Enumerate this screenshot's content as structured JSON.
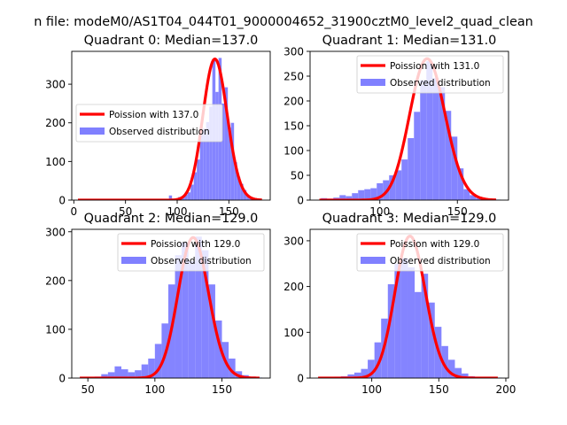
{
  "figure": {
    "suptitle": "n file: modeM0/AS1T04_044T01_9000004652_31900cztM0_level2_quad_clean"
  },
  "colors": {
    "hist": "#8080ff",
    "poisson": "#ff0000",
    "axis": "#000000",
    "background": "#ffffff"
  },
  "chart_data": [
    {
      "type": "bar",
      "title": "Quadrant 0: Median=137.0",
      "xlim": [
        -2,
        190
      ],
      "ylim": [
        0,
        385
      ],
      "xticks": [
        0,
        50,
        100,
        150
      ],
      "yticks": [
        0,
        100,
        200,
        300
      ],
      "legend": {
        "placement": "center-left",
        "labels": [
          "Poission with 137.0",
          "Observed distribution"
        ]
      },
      "poisson_mean": 137,
      "poisson_peak": 365,
      "hist": {
        "name": "Observed distribution",
        "bin_edges": [
          77,
          80,
          83,
          86,
          89,
          92,
          95,
          98,
          101,
          104,
          107,
          110,
          113,
          116,
          119,
          122,
          125,
          128,
          131,
          134,
          137,
          140,
          143,
          146,
          149,
          152,
          155,
          158,
          161,
          164,
          167,
          170,
          173,
          176,
          179,
          182
        ],
        "counts": [
          2,
          2,
          2,
          2,
          3,
          12,
          4,
          4,
          8,
          6,
          14,
          20,
          40,
          72,
          105,
          180,
          185,
          202,
          242,
          365,
          280,
          368,
          250,
          292,
          188,
          200,
          98,
          60,
          42,
          26,
          12,
          8,
          4,
          2,
          1
        ]
      }
    },
    {
      "type": "bar",
      "title": "Quadrant 1: Median=131.0",
      "xlim": [
        55,
        183
      ],
      "ylim": [
        0,
        300
      ],
      "xticks": [
        50,
        100,
        150
      ],
      "yticks": [
        0,
        50,
        100,
        150,
        200,
        250,
        300
      ],
      "legend": {
        "placement": "top-right",
        "labels": [
          "Poission with 131.0",
          "Observed distribution"
        ]
      },
      "poisson_mean": 131,
      "poisson_peak": 285,
      "hist": {
        "name": "Observed distribution",
        "bin_edges": [
          62,
          66,
          70,
          74,
          78,
          82,
          86,
          90,
          94,
          98,
          102,
          106,
          110,
          114,
          118,
          122,
          126,
          130,
          134,
          138,
          142,
          146,
          150,
          154,
          158,
          162,
          166,
          170,
          174,
          178
        ],
        "counts": [
          4,
          3,
          5,
          10,
          8,
          14,
          20,
          22,
          24,
          34,
          40,
          50,
          60,
          82,
          125,
          178,
          242,
          280,
          246,
          228,
          180,
          128,
          64,
          22,
          10,
          4,
          2,
          1,
          1
        ]
      }
    },
    {
      "type": "bar",
      "title": "Quadrant 2: Median=129.0",
      "xlim": [
        38,
        186
      ],
      "ylim": [
        0,
        305
      ],
      "xticks": [
        50,
        100,
        150
      ],
      "yticks": [
        0,
        100,
        200,
        300
      ],
      "legend": {
        "placement": "top-right",
        "labels": [
          "Poission with 129.0",
          "Observed distribution"
        ]
      },
      "poisson_mean": 129,
      "poisson_peak": 288,
      "hist": {
        "name": "Observed distribution",
        "bin_edges": [
          45,
          50,
          55,
          60,
          65,
          70,
          75,
          80,
          85,
          90,
          95,
          100,
          105,
          110,
          115,
          120,
          125,
          130,
          135,
          140,
          145,
          150,
          155,
          160,
          165,
          170,
          175,
          180
        ],
        "counts": [
          2,
          2,
          3,
          8,
          12,
          24,
          18,
          12,
          16,
          28,
          40,
          70,
          112,
          192,
          252,
          278,
          240,
          290,
          262,
          192,
          118,
          74,
          40,
          14,
          6,
          3,
          1
        ]
      }
    },
    {
      "type": "bar",
      "title": "Quadrant 3: Median=129.0",
      "xlim": [
        54,
        202
      ],
      "ylim": [
        0,
        325
      ],
      "xticks": [
        100,
        150,
        200
      ],
      "yticks": [
        0,
        100,
        200,
        300
      ],
      "legend": {
        "placement": "top-right",
        "labels": [
          "Poission with 129.0",
          "Observed distribution"
        ]
      },
      "poisson_mean": 129,
      "poisson_peak": 310,
      "hist": {
        "name": "Observed distribution",
        "bin_edges": [
          62,
          67,
          72,
          77,
          82,
          87,
          92,
          97,
          102,
          107,
          112,
          117,
          122,
          127,
          132,
          137,
          142,
          147,
          152,
          157,
          162,
          167,
          172,
          177,
          182,
          187,
          192,
          197
        ],
        "counts": [
          2,
          2,
          3,
          4,
          8,
          12,
          20,
          40,
          78,
          130,
          205,
          250,
          262,
          242,
          188,
          228,
          165,
          112,
          70,
          40,
          22,
          10,
          4,
          2,
          1,
          1,
          1
        ]
      }
    }
  ]
}
